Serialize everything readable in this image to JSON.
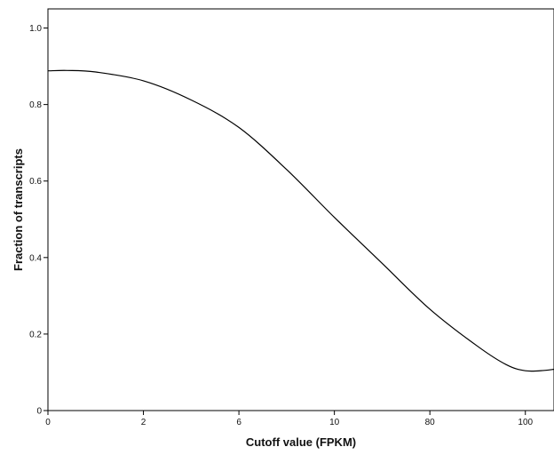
{
  "chart_data": {
    "type": "line",
    "title": "",
    "xlabel": "Cutoff value (FPKM)",
    "ylabel": "Fraction of transcripts",
    "x_tick_labels": [
      "0",
      "2",
      "6",
      "10",
      "80",
      "100"
    ],
    "x_tick_positions": [
      0,
      1,
      2,
      3,
      4,
      5
    ],
    "y_ticks": [
      0,
      0.2,
      0.4,
      0.6,
      0.8,
      1.0
    ],
    "y_tick_labels": [
      "0",
      "0.2",
      "0.4",
      "0.6",
      "0.8",
      "1.0"
    ],
    "xlim": [
      0,
      5.3
    ],
    "ylim": [
      0,
      1.05
    ],
    "grid": false,
    "legend": "none",
    "line_color": "#000000",
    "series": [
      {
        "values": [
          {
            "x": 0.0,
            "y": 0.888
          },
          {
            "x": 0.2,
            "y": 0.889
          },
          {
            "x": 0.5,
            "y": 0.885
          },
          {
            "x": 1.0,
            "y": 0.862
          },
          {
            "x": 1.5,
            "y": 0.812
          },
          {
            "x": 2.0,
            "y": 0.74
          },
          {
            "x": 2.5,
            "y": 0.63
          },
          {
            "x": 3.0,
            "y": 0.505
          },
          {
            "x": 3.5,
            "y": 0.385
          },
          {
            "x": 4.0,
            "y": 0.265
          },
          {
            "x": 4.5,
            "y": 0.168
          },
          {
            "x": 4.8,
            "y": 0.12
          },
          {
            "x": 5.0,
            "y": 0.104
          },
          {
            "x": 5.2,
            "y": 0.105
          },
          {
            "x": 5.3,
            "y": 0.108
          }
        ]
      }
    ]
  }
}
